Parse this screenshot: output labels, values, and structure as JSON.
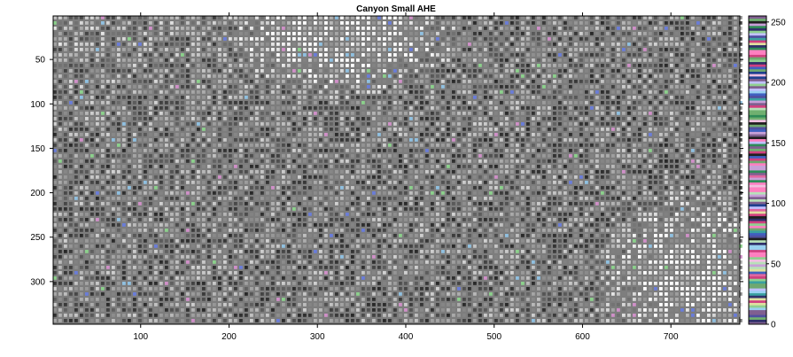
{
  "chart_data": {
    "type": "heatmap",
    "title": "Canyon Small AHE",
    "xlabel": "",
    "ylabel": "",
    "xlim": [
      1,
      778
    ],
    "ylim": [
      1,
      348
    ],
    "y_reversed": true,
    "x_ticks": [
      100,
      200,
      300,
      400,
      500,
      600,
      700
    ],
    "y_ticks": [
      50,
      100,
      150,
      200,
      250,
      300
    ],
    "colorbar": {
      "range": [
        0,
        255
      ],
      "ticks": [
        0,
        50,
        100,
        150,
        200,
        250
      ],
      "colormap": "random-colorcube-like"
    },
    "image_description_values": {
      "dominant_gray": "#808080",
      "bright_regions": [
        "top-center (x 250-420, y 1-80)",
        "bottom-right (x 620-778, y 200-348)"
      ]
    },
    "grid": false
  }
}
